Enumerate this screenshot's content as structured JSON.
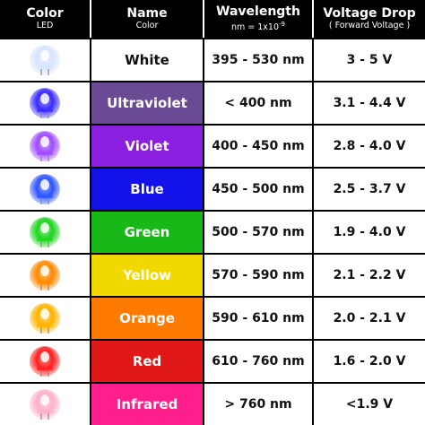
{
  "headers": {
    "color": {
      "title": "Color",
      "sub": "LED"
    },
    "name": {
      "title": "Name",
      "sub": "Color"
    },
    "wavelength": {
      "title": "Wavelength",
      "sub": "nm = 1x10",
      "sup": "-9"
    },
    "voltage": {
      "title": "Voltage Drop",
      "sub": "( Forward Voltage )"
    }
  },
  "rows": [
    {
      "name": "White",
      "wavelength": "395 - 530 nm",
      "voltage": "3 - 5 V",
      "bg": "#ffffff",
      "glow": "#d8e4ff",
      "icon": "white-led-icon"
    },
    {
      "name": "Ultraviolet",
      "wavelength": "< 400 nm",
      "voltage": "3.1 - 4.4 V",
      "bg": "#6a4b93",
      "glow": "#3a2cff",
      "icon": "ultraviolet-led-icon"
    },
    {
      "name": "Violet",
      "wavelength": "400 - 450 nm",
      "voltage": "2.8 - 4.0 V",
      "bg": "#8b1fe0",
      "glow": "#a04cff",
      "icon": "violet-led-icon"
    },
    {
      "name": "Blue",
      "wavelength": "450 - 500 nm",
      "voltage": "2.5 - 3.7 V",
      "bg": "#1212e8",
      "glow": "#2f56ff",
      "icon": "blue-led-icon"
    },
    {
      "name": "Green",
      "wavelength": "500 - 570 nm",
      "voltage": "1.9 - 4.0 V",
      "bg": "#19b819",
      "glow": "#1fd61f",
      "icon": "green-led-icon"
    },
    {
      "name": "Yellow",
      "wavelength": "570 - 590 nm",
      "voltage": "2.1 - 2.2 V",
      "bg": "#f0d800",
      "glow": "#ff8a00",
      "icon": "yellow-led-icon"
    },
    {
      "name": "Orange",
      "wavelength": "590 - 610 nm",
      "voltage": "2.0 - 2.1 V",
      "bg": "#ff7a00",
      "glow": "#ffb300",
      "icon": "orange-led-icon"
    },
    {
      "name": "Red",
      "wavelength": "610 - 760 nm",
      "voltage": "1.6 - 2.0 V",
      "bg": "#e01818",
      "glow": "#ff2020",
      "icon": "red-led-icon"
    },
    {
      "name": "Infrared",
      "wavelength": "> 760 nm",
      "voltage": "<1.9 V",
      "bg": "#ff1e8c",
      "glow": "#ffb0c8",
      "icon": "infrared-led-icon"
    }
  ]
}
